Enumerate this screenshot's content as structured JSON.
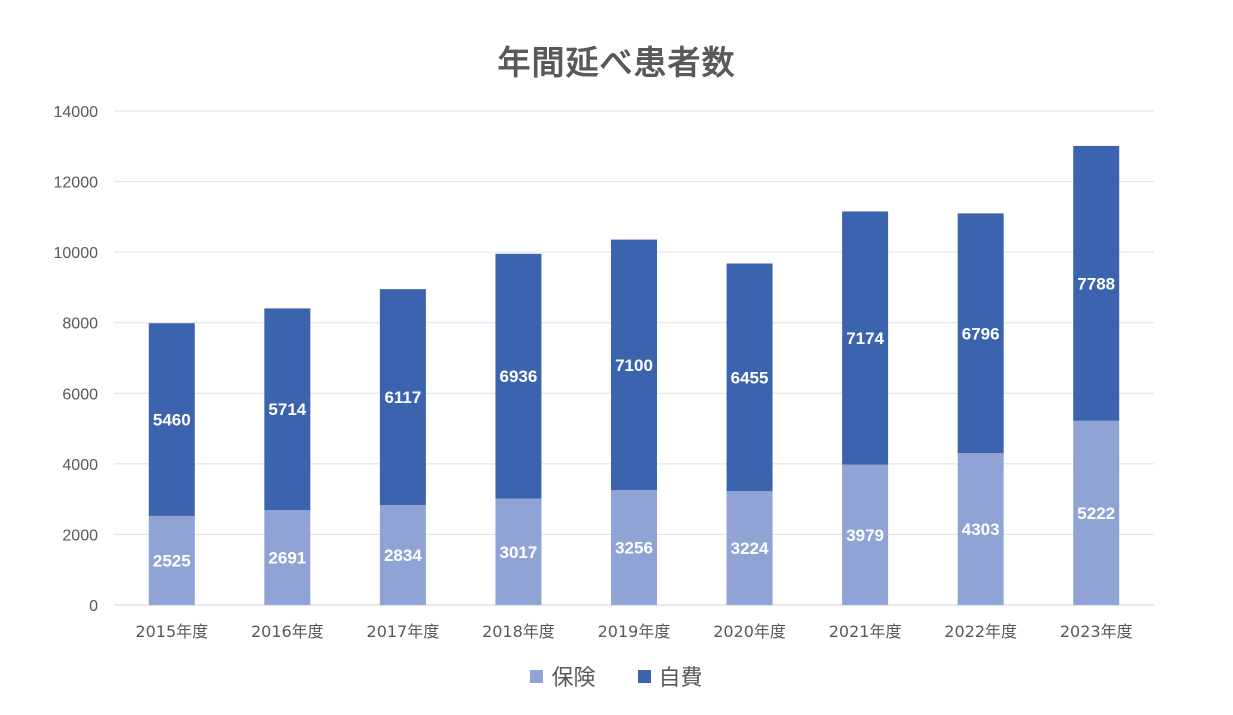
{
  "chart_data": {
    "type": "bar",
    "stacked": true,
    "title": "年間延べ患者数",
    "xlabel": "",
    "ylabel": "",
    "ylim": [
      0,
      14000
    ],
    "yticks": [
      0,
      2000,
      4000,
      6000,
      8000,
      10000,
      12000,
      14000
    ],
    "grid": true,
    "legend_position": "bottom",
    "categories": [
      "2015年度",
      "2016年度",
      "2017年度",
      "2018年度",
      "2019年度",
      "2020年度",
      "2021年度",
      "2022年度",
      "2023年度"
    ],
    "series": [
      {
        "name": "保険",
        "color": "#8FA3D4",
        "values": [
          2525,
          2691,
          2834,
          3017,
          3256,
          3224,
          3979,
          4303,
          5222
        ]
      },
      {
        "name": "自費",
        "color": "#3B63AE",
        "values": [
          5460,
          5714,
          6117,
          6936,
          7100,
          6455,
          7174,
          6796,
          7788
        ]
      }
    ]
  }
}
